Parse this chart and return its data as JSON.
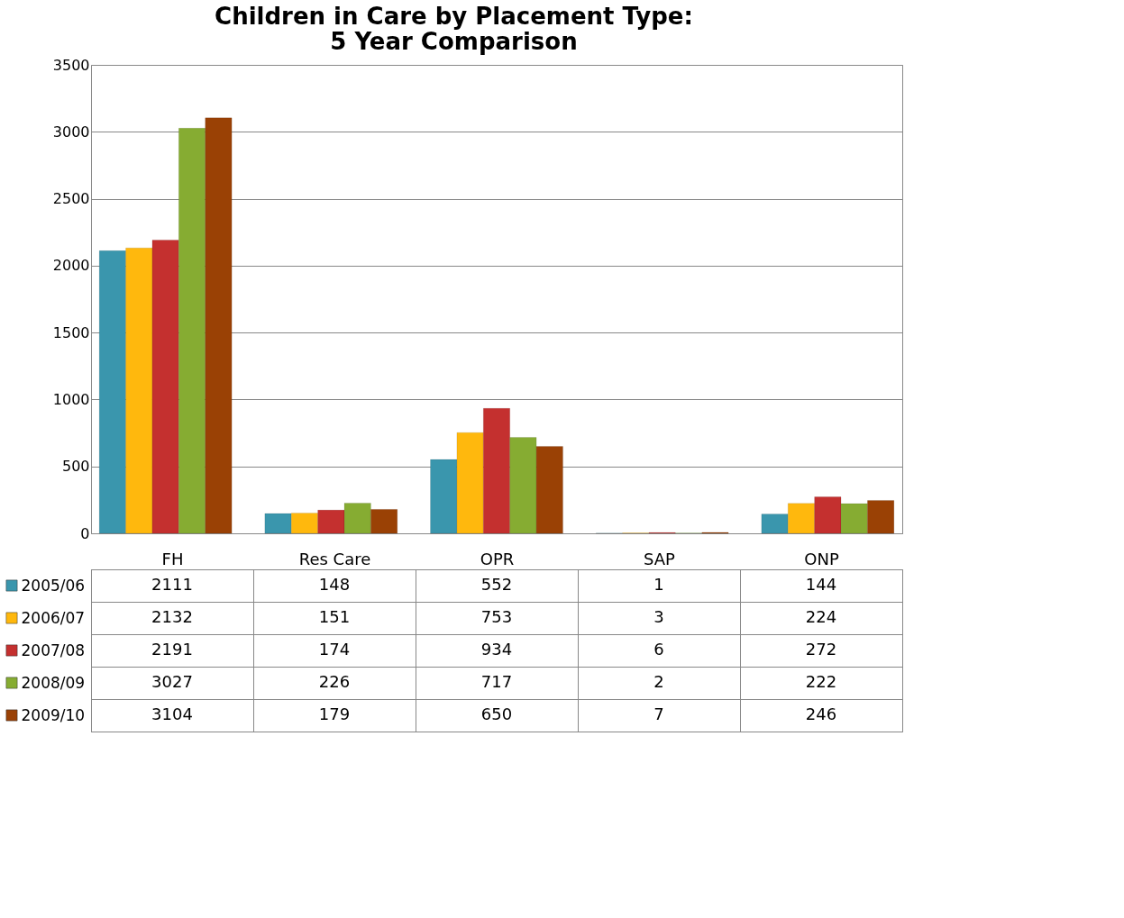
{
  "chart_data": {
    "type": "bar",
    "title": "Children in Care by Placement Type:\n5 Year Comparison",
    "categories": [
      "FH",
      "Res Care",
      "OPR",
      "SAP",
      "ONP"
    ],
    "series": [
      {
        "name": "2005/06",
        "color": "#3a96ad",
        "values": [
          2111,
          148,
          552,
          1,
          144
        ]
      },
      {
        "name": "2006/07",
        "color": "#ffb80d",
        "values": [
          2132,
          151,
          753,
          3,
          224
        ]
      },
      {
        "name": "2007/08",
        "color": "#c4302f",
        "values": [
          2191,
          174,
          934,
          6,
          272
        ]
      },
      {
        "name": "2008/09",
        "color": "#86ac32",
        "values": [
          3027,
          226,
          717,
          2,
          222
        ]
      },
      {
        "name": "2009/10",
        "color": "#9a4105",
        "values": [
          3104,
          179,
          650,
          7,
          246
        ]
      }
    ],
    "ylim": [
      0,
      3500
    ],
    "yticks": [
      0,
      500,
      1000,
      1500,
      2000,
      2500,
      3000,
      3500
    ],
    "grid": "y",
    "legend": "bottom",
    "data_labels": true
  }
}
